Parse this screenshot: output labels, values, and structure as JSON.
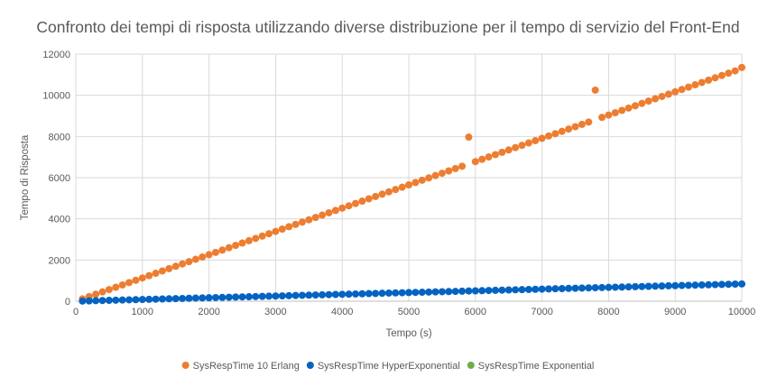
{
  "chart_data": {
    "type": "scatter",
    "title": "Confronto dei tempi di risposta utilizzando diverse distribuzione per il tempo di servizio del Front-End",
    "xlabel": "Tempo (s)",
    "ylabel": "Tempo di Risposta",
    "xlim": [
      0,
      10000
    ],
    "ylim": [
      0,
      12000
    ],
    "x_ticks": [
      0,
      1000,
      2000,
      3000,
      4000,
      5000,
      6000,
      7000,
      8000,
      9000,
      10000
    ],
    "y_ticks": [
      0,
      2000,
      4000,
      6000,
      8000,
      10000,
      12000
    ],
    "grid": true,
    "legend_position": "bottom",
    "series": [
      {
        "name": "SysRespTime 10 Erlang",
        "color": "#ED7D31",
        "x": [
          100,
          200,
          300,
          400,
          500,
          600,
          700,
          800,
          900,
          1000,
          1100,
          1200,
          1300,
          1400,
          1500,
          1600,
          1700,
          1800,
          1900,
          2000,
          2100,
          2200,
          2300,
          2400,
          2500,
          2600,
          2700,
          2800,
          2900,
          3000,
          3100,
          3200,
          3300,
          3400,
          3500,
          3600,
          3700,
          3800,
          3900,
          4000,
          4100,
          4200,
          4300,
          4400,
          4500,
          4600,
          4700,
          4800,
          4900,
          5000,
          5100,
          5200,
          5300,
          5400,
          5500,
          5600,
          5700,
          5800,
          5900,
          6000,
          6100,
          6200,
          6300,
          6400,
          6500,
          6600,
          6700,
          6800,
          6900,
          7000,
          7100,
          7200,
          7300,
          7400,
          7500,
          7600,
          7700,
          7800,
          7900,
          8000,
          8100,
          8200,
          8300,
          8400,
          8500,
          8600,
          8700,
          8800,
          8900,
          9000,
          9100,
          9200,
          9300,
          9400,
          9500,
          9600,
          9700,
          9800,
          9900,
          10000
        ],
        "y": [
          113,
          226,
          339,
          452,
          565,
          678,
          791,
          904,
          1017,
          1130,
          1243,
          1356,
          1469,
          1582,
          1695,
          1808,
          1921,
          2034,
          2147,
          2260,
          2373,
          2486,
          2599,
          2712,
          2825,
          2938,
          3051,
          3164,
          3277,
          3390,
          3503,
          3616,
          3729,
          3842,
          3955,
          4068,
          4181,
          4294,
          4407,
          4520,
          4633,
          4746,
          4859,
          4972,
          5085,
          5198,
          5311,
          5424,
          5537,
          5650,
          5763,
          5876,
          5989,
          6102,
          6215,
          6328,
          6441,
          6554,
          7970,
          6780,
          6893,
          7006,
          7119,
          7232,
          7345,
          7458,
          7571,
          7684,
          7797,
          7910,
          8023,
          8136,
          8249,
          8362,
          8475,
          8588,
          8701,
          10250,
          8927,
          9040,
          9153,
          9266,
          9379,
          9492,
          9605,
          9718,
          9831,
          9944,
          10057,
          10170,
          10283,
          10396,
          10509,
          10622,
          10735,
          10848,
          10961,
          11074,
          11187,
          11350
        ]
      },
      {
        "name": "SysRespTime HyperExponential",
        "color": "#0563C1",
        "x": [
          100,
          200,
          300,
          400,
          500,
          600,
          700,
          800,
          900,
          1000,
          1100,
          1200,
          1300,
          1400,
          1500,
          1600,
          1700,
          1800,
          1900,
          2000,
          2100,
          2200,
          2300,
          2400,
          2500,
          2600,
          2700,
          2800,
          2900,
          3000,
          3100,
          3200,
          3300,
          3400,
          3500,
          3600,
          3700,
          3800,
          3900,
          4000,
          4100,
          4200,
          4300,
          4400,
          4500,
          4600,
          4700,
          4800,
          4900,
          5000,
          5100,
          5200,
          5300,
          5400,
          5500,
          5600,
          5700,
          5800,
          5900,
          6000,
          6100,
          6200,
          6300,
          6400,
          6500,
          6600,
          6700,
          6800,
          6900,
          7000,
          7100,
          7200,
          7300,
          7400,
          7500,
          7600,
          7700,
          7800,
          7900,
          8000,
          8100,
          8200,
          8300,
          8400,
          8500,
          8600,
          8700,
          8800,
          8900,
          9000,
          9100,
          9200,
          9300,
          9400,
          9500,
          9600,
          9700,
          9800,
          9900,
          10000
        ],
        "y": [
          8,
          17,
          25,
          34,
          42,
          50,
          59,
          67,
          76,
          84,
          92,
          101,
          109,
          118,
          126,
          134,
          143,
          151,
          160,
          168,
          176,
          185,
          193,
          202,
          210,
          218,
          227,
          235,
          244,
          252,
          260,
          269,
          277,
          286,
          294,
          302,
          311,
          319,
          328,
          336,
          344,
          353,
          361,
          370,
          378,
          386,
          395,
          403,
          412,
          420,
          428,
          437,
          445,
          454,
          462,
          470,
          479,
          487,
          496,
          504,
          512,
          521,
          529,
          538,
          546,
          554,
          563,
          571,
          580,
          588,
          596,
          605,
          613,
          622,
          630,
          638,
          647,
          655,
          664,
          672,
          680,
          689,
          697,
          706,
          714,
          722,
          731,
          739,
          748,
          756,
          764,
          773,
          781,
          790,
          798,
          806,
          815,
          823,
          832,
          840
        ]
      },
      {
        "name": "SysRespTime Exponential",
        "color": "#70AD47",
        "x": [],
        "y": []
      }
    ]
  }
}
